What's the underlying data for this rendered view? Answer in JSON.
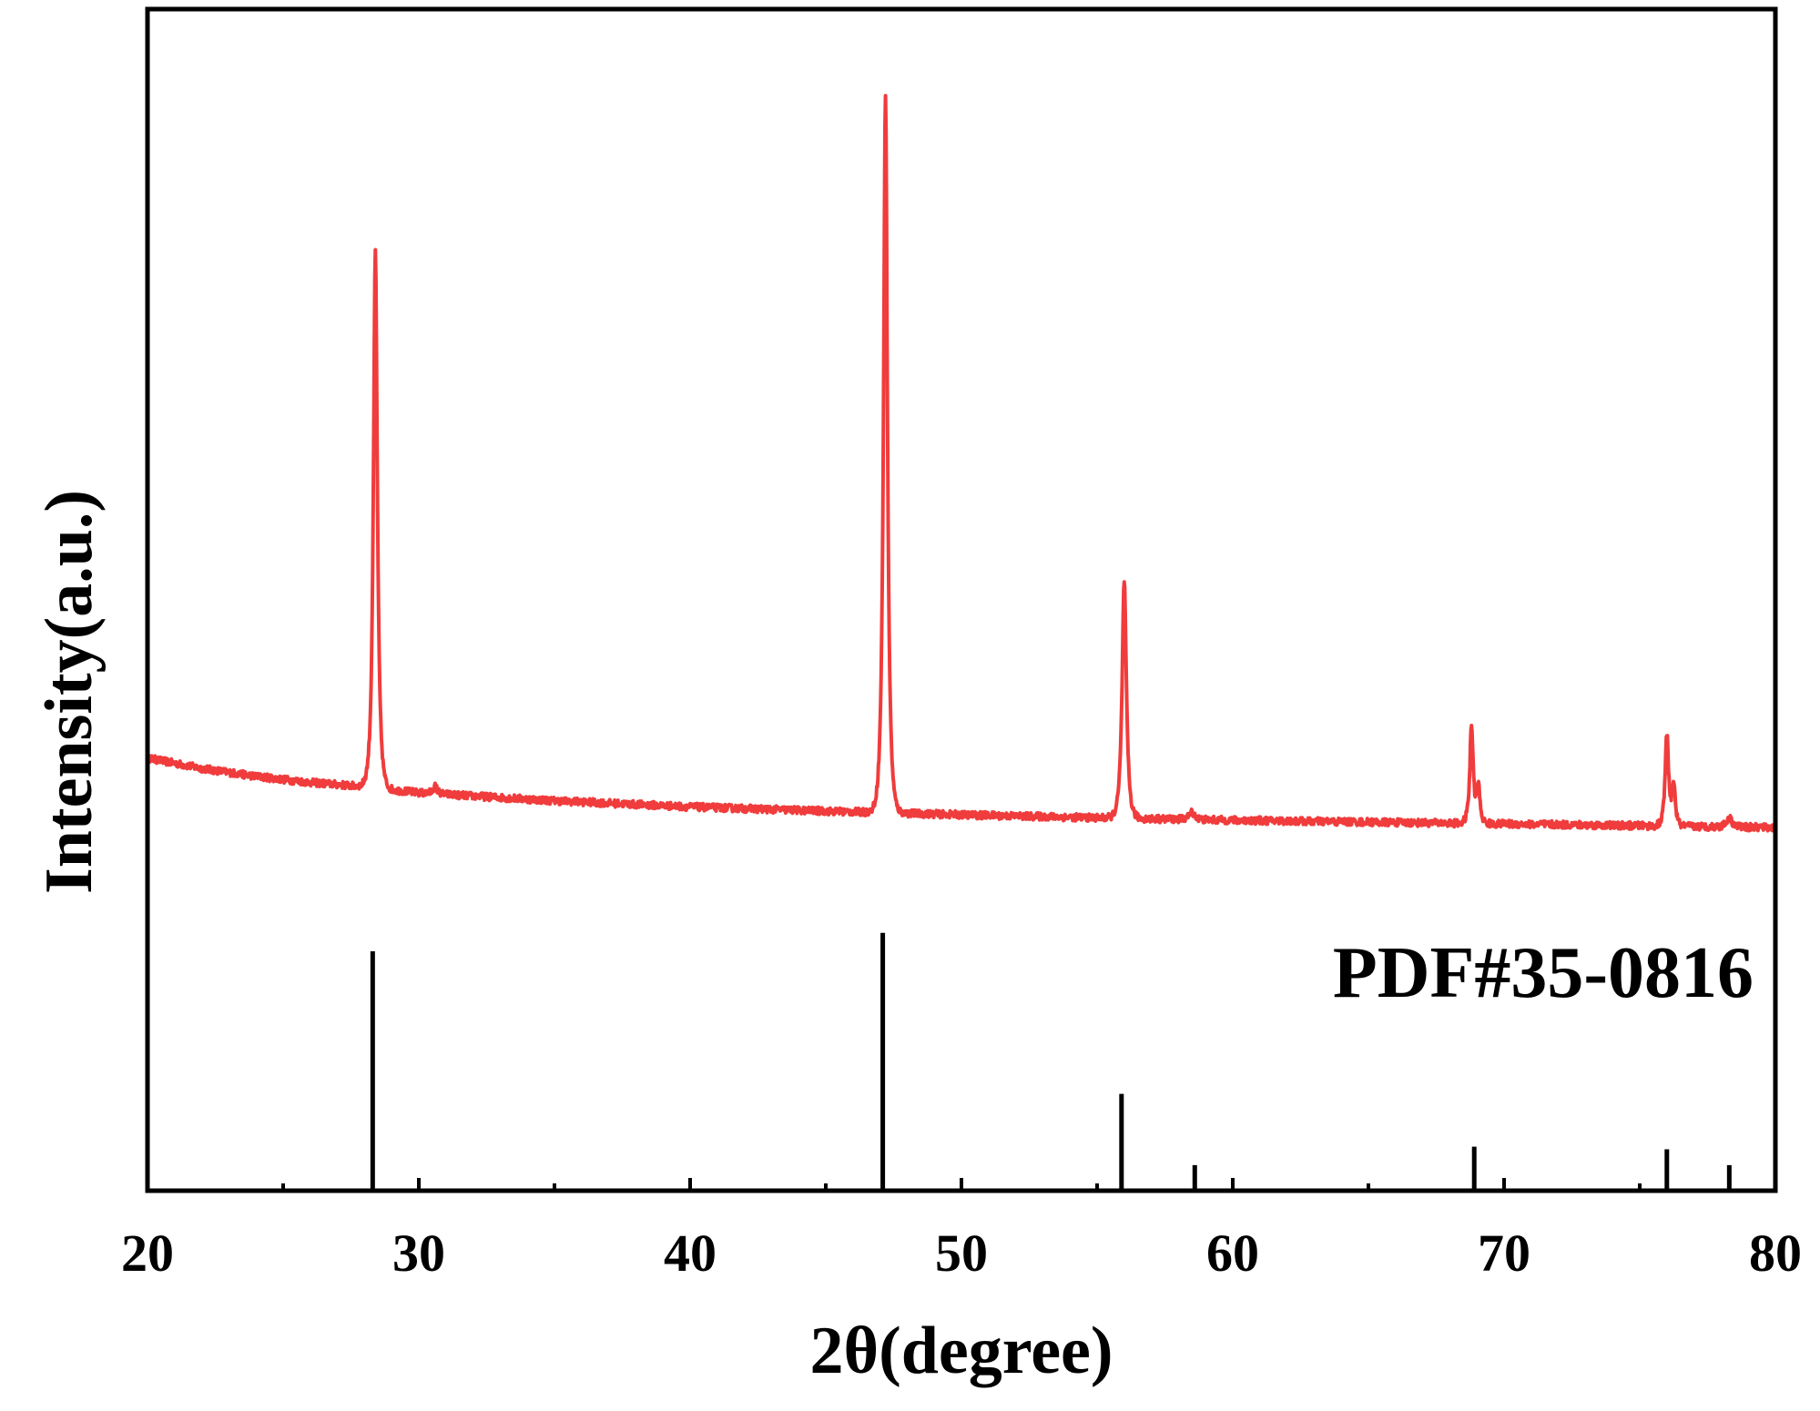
{
  "chart_data": {
    "type": "line",
    "title": "",
    "xlabel": "2θ(degree)",
    "ylabel": "Intensity(a.u.)",
    "xlim": [
      20,
      80
    ],
    "xticks": [
      20,
      30,
      40,
      50,
      60,
      70,
      80
    ],
    "grid": false,
    "colors": {
      "pattern": "#f03c3c",
      "reference": "#000000",
      "axes": "#000000"
    },
    "series": [
      {
        "background": [
          [
            20,
            0.19
          ],
          [
            22,
            0.173
          ],
          [
            24,
            0.16
          ],
          [
            26,
            0.15
          ],
          [
            28,
            0.143
          ],
          [
            30,
            0.133
          ],
          [
            35,
            0.12
          ],
          [
            40,
            0.11
          ],
          [
            45,
            0.103
          ],
          [
            50,
            0.097
          ],
          [
            55,
            0.092
          ],
          [
            60,
            0.088
          ],
          [
            65,
            0.085
          ],
          [
            70,
            0.082
          ],
          [
            75,
            0.079
          ],
          [
            80,
            0.076
          ]
        ],
        "peaks": [
          {
            "x": 28.4,
            "height": 0.88,
            "width": 0.14
          },
          {
            "x": 30.6,
            "height": 0.012,
            "width": 0.15
          },
          {
            "x": 47.2,
            "height": 1.18,
            "width": 0.14
          },
          {
            "x": 56.0,
            "height": 0.39,
            "width": 0.15
          },
          {
            "x": 58.5,
            "height": 0.012,
            "width": 0.2
          },
          {
            "x": 68.8,
            "height": 0.16,
            "width": 0.12
          },
          {
            "x": 69.05,
            "height": 0.06,
            "width": 0.12
          },
          {
            "x": 76.0,
            "height": 0.15,
            "width": 0.12
          },
          {
            "x": 76.25,
            "height": 0.07,
            "width": 0.12
          },
          {
            "x": 78.3,
            "height": 0.015,
            "width": 0.2
          }
        ]
      }
    ],
    "reference": {
      "label": "PDF#35-0816",
      "lines": [
        {
          "x": 28.3,
          "intensity": 0.9
        },
        {
          "x": 47.1,
          "intensity": 0.97
        },
        {
          "x": 55.9,
          "intensity": 0.36
        },
        {
          "x": 58.6,
          "intensity": 0.09
        },
        {
          "x": 68.9,
          "intensity": 0.16
        },
        {
          "x": 76.0,
          "intensity": 0.15
        },
        {
          "x": 78.3,
          "intensity": 0.09
        }
      ]
    }
  }
}
